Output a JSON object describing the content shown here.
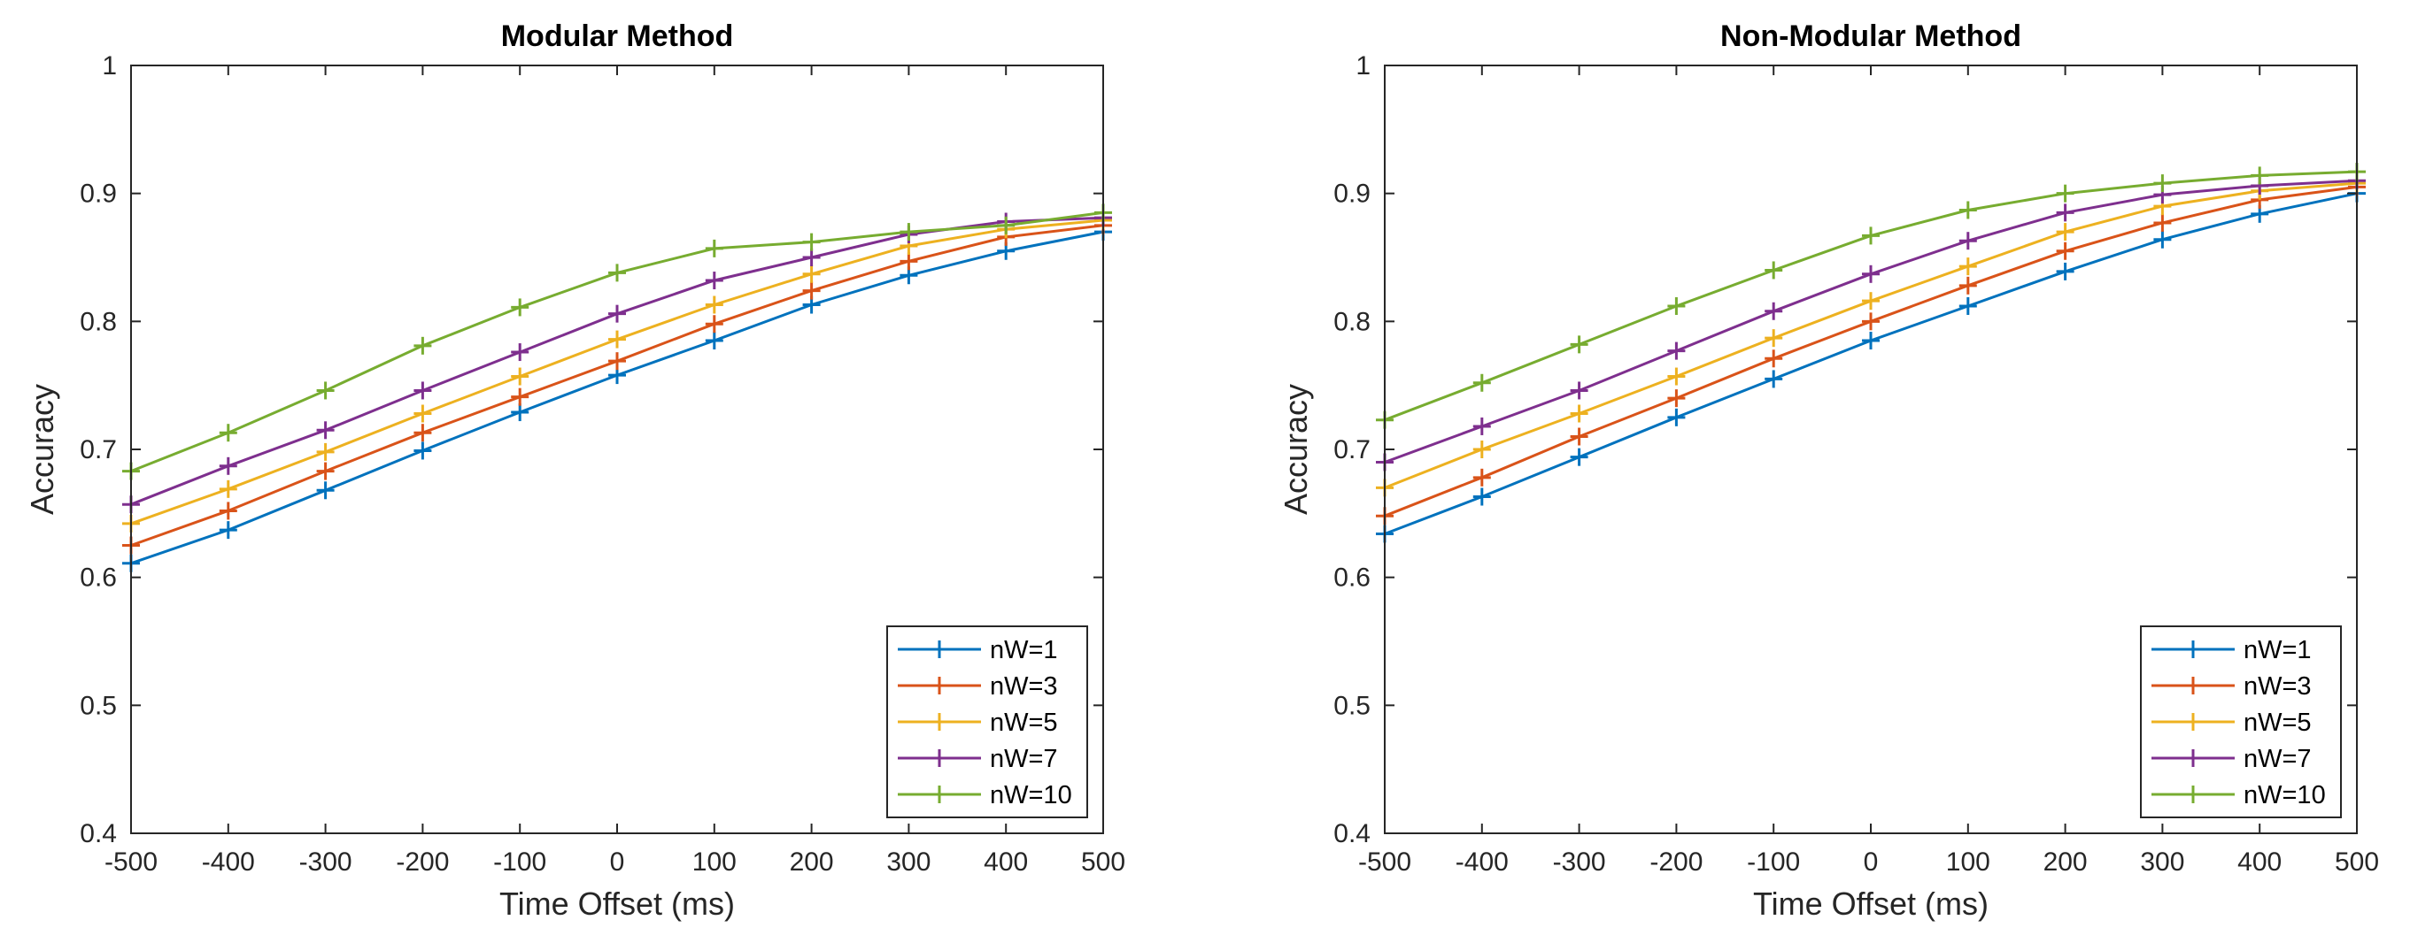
{
  "chart_data": [
    {
      "type": "line",
      "title": "Modular Method",
      "xlabel": "Time Offset (ms)",
      "ylabel": "Accuracy",
      "x": [
        -500,
        -400,
        -300,
        -200,
        -100,
        0,
        100,
        200,
        300,
        400,
        500
      ],
      "xlim": [
        -500,
        500
      ],
      "ylim": [
        0.4,
        1
      ],
      "xticks": [
        -500,
        -400,
        -300,
        -200,
        -100,
        0,
        100,
        200,
        300,
        400,
        500
      ],
      "xtick_labels": [
        "-500",
        "-400",
        "-300",
        "-200",
        "-100",
        "0",
        "100",
        "200",
        "300",
        "400",
        "500"
      ],
      "yticks": [
        0.4,
        0.5,
        0.6,
        0.7,
        0.8,
        0.9,
        1
      ],
      "ytick_labels": [
        "0.4",
        "0.5",
        "0.6",
        "0.7",
        "0.8",
        "0.9",
        "1"
      ],
      "grid": false,
      "legend_position": "bottom-right",
      "marker": "+",
      "series": [
        {
          "name": "nW=1",
          "color": "#0072BD",
          "values": [
            0.611,
            0.637,
            0.668,
            0.699,
            0.729,
            0.758,
            0.785,
            0.813,
            0.836,
            0.855,
            0.87
          ]
        },
        {
          "name": "nW=3",
          "color": "#D95319",
          "values": [
            0.625,
            0.652,
            0.683,
            0.713,
            0.741,
            0.769,
            0.798,
            0.824,
            0.847,
            0.866,
            0.875
          ]
        },
        {
          "name": "nW=5",
          "color": "#EDB120",
          "values": [
            0.642,
            0.669,
            0.698,
            0.728,
            0.757,
            0.786,
            0.813,
            0.837,
            0.859,
            0.872,
            0.879
          ]
        },
        {
          "name": "nW=7",
          "color": "#7E2F8E",
          "values": [
            0.657,
            0.687,
            0.715,
            0.746,
            0.776,
            0.806,
            0.832,
            0.85,
            0.868,
            0.878,
            0.881
          ]
        },
        {
          "name": "nW=10",
          "color": "#77AC30",
          "values": [
            0.683,
            0.713,
            0.746,
            0.781,
            0.811,
            0.838,
            0.857,
            0.862,
            0.87,
            0.875,
            0.885
          ]
        }
      ]
    },
    {
      "type": "line",
      "title": "Non-Modular Method",
      "xlabel": "Time Offset (ms)",
      "ylabel": "Accuracy",
      "x": [
        -500,
        -400,
        -300,
        -200,
        -100,
        0,
        100,
        200,
        300,
        400,
        500
      ],
      "xlim": [
        -500,
        500
      ],
      "ylim": [
        0.4,
        1
      ],
      "xticks": [
        -500,
        -400,
        -300,
        -200,
        -100,
        0,
        100,
        200,
        300,
        400,
        500
      ],
      "xtick_labels": [
        "-500",
        "-400",
        "-300",
        "-200",
        "-100",
        "0",
        "100",
        "200",
        "300",
        "400",
        "500"
      ],
      "yticks": [
        0.4,
        0.5,
        0.6,
        0.7,
        0.8,
        0.9,
        1
      ],
      "ytick_labels": [
        "0.4",
        "0.5",
        "0.6",
        "0.7",
        "0.8",
        "0.9",
        "1"
      ],
      "grid": false,
      "legend_position": "bottom-right",
      "marker": "+",
      "series": [
        {
          "name": "nW=1",
          "color": "#0072BD",
          "values": [
            0.634,
            0.663,
            0.694,
            0.725,
            0.755,
            0.785,
            0.812,
            0.839,
            0.864,
            0.884,
            0.9
          ]
        },
        {
          "name": "nW=3",
          "color": "#D95319",
          "values": [
            0.648,
            0.678,
            0.71,
            0.74,
            0.771,
            0.8,
            0.828,
            0.855,
            0.877,
            0.895,
            0.905
          ]
        },
        {
          "name": "nW=5",
          "color": "#EDB120",
          "values": [
            0.67,
            0.7,
            0.728,
            0.757,
            0.787,
            0.816,
            0.843,
            0.87,
            0.89,
            0.902,
            0.908
          ]
        },
        {
          "name": "nW=7",
          "color": "#7E2F8E",
          "values": [
            0.69,
            0.718,
            0.746,
            0.777,
            0.808,
            0.837,
            0.863,
            0.885,
            0.899,
            0.906,
            0.91
          ]
        },
        {
          "name": "nW=10",
          "color": "#77AC30",
          "values": [
            0.723,
            0.752,
            0.782,
            0.812,
            0.84,
            0.867,
            0.887,
            0.9,
            0.908,
            0.914,
            0.917
          ]
        }
      ]
    }
  ]
}
